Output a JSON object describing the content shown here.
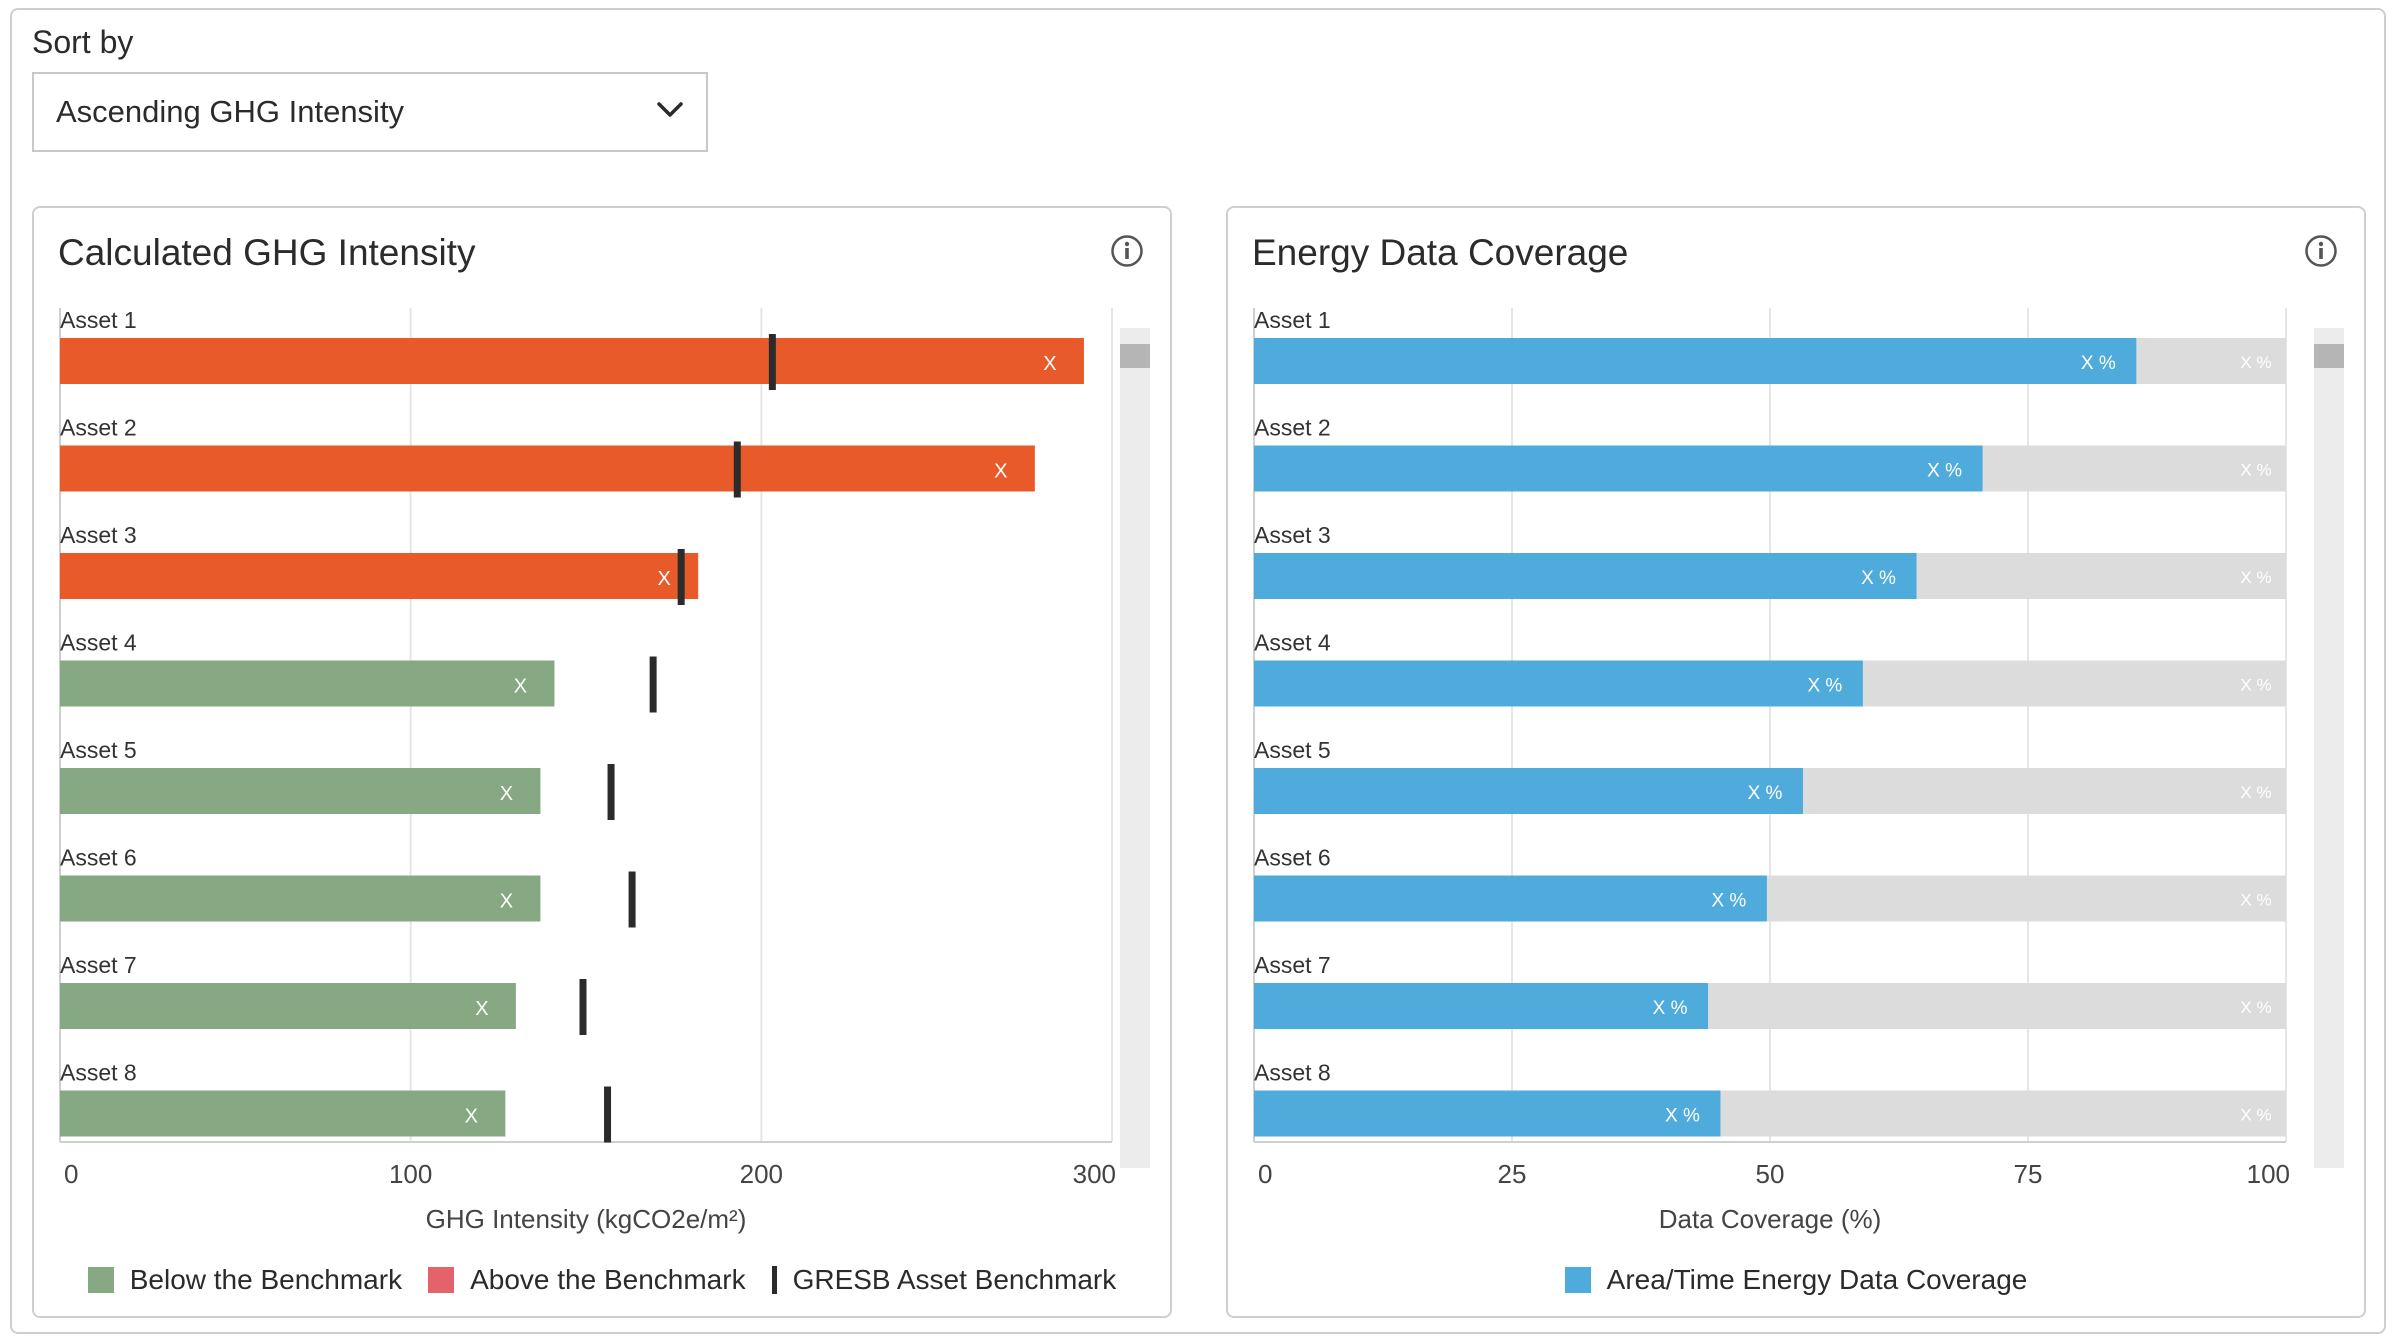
{
  "sort": {
    "label": "Sort by",
    "selected": "Ascending GHG Intensity"
  },
  "colors": {
    "above": "#e85a2a",
    "below": "#86a883",
    "benchmark": "#2b2b2b",
    "coverage": "#4fabdc",
    "coverage_rest": "#dcdcdc",
    "grid": "#e6e6e6"
  },
  "left_panel": {
    "title": "Calculated GHG Intensity",
    "legend": {
      "below": "Below the Benchmark",
      "above": "Above the Benchmark",
      "benchmark": "GRESB Asset Benchmark"
    },
    "legend_above_color": "#e4636b"
  },
  "right_panel": {
    "title": "Energy Data Coverage",
    "legend": {
      "coverage": "Area/Time Energy Data Coverage"
    }
  },
  "chart_data": [
    {
      "type": "bar",
      "orientation": "horizontal",
      "title": "Calculated GHG Intensity",
      "xlabel": "GHG Intensity (kgCO2e/m²)",
      "xlim": [
        0,
        300
      ],
      "xticks": [
        "0",
        "100",
        "200",
        "300"
      ],
      "xtick_values": [
        0,
        100,
        200,
        300
      ],
      "categories": [
        "Asset 1",
        "Asset 2",
        "Asset 3",
        "Asset 4",
        "Asset 5",
        "Asset 6",
        "Asset 7",
        "Asset 8"
      ],
      "values": [
        292,
        278,
        182,
        141,
        137,
        137,
        130,
        127
      ],
      "status": [
        "above",
        "above",
        "above",
        "below",
        "below",
        "below",
        "below",
        "below"
      ],
      "benchmark": [
        203,
        193,
        177,
        169,
        157,
        163,
        149,
        156
      ],
      "data_labels": [
        "X",
        "X",
        "X",
        "X",
        "X",
        "X",
        "X",
        "X"
      ],
      "grid": true,
      "legend": [
        "Below the Benchmark",
        "Above the Benchmark",
        "GRESB Asset Benchmark"
      ],
      "legend_position": "bottom"
    },
    {
      "type": "bar",
      "orientation": "horizontal",
      "stacked": true,
      "title": "Energy Data Coverage",
      "xlabel": "Data Coverage (%)",
      "xlim": [
        0,
        100
      ],
      "xticks": [
        "0",
        "25",
        "50",
        "75",
        "100"
      ],
      "xtick_values": [
        0,
        25,
        50,
        75,
        100
      ],
      "categories": [
        "Asset 1",
        "Asset 2",
        "Asset 3",
        "Asset 4",
        "Asset 5",
        "Asset 6",
        "Asset 7",
        "Asset 8"
      ],
      "series": [
        {
          "name": "Area/Time Energy Data Coverage",
          "values": [
            85.5,
            70.6,
            64.2,
            59.0,
            53.2,
            49.7,
            44.0,
            45.2
          ]
        }
      ],
      "data_labels": [
        "X %",
        "X %",
        "X %",
        "X %",
        "X %",
        "X %",
        "X %",
        "X %"
      ],
      "rest_labels": [
        "X %",
        "X %",
        "X %",
        "X %",
        "X %",
        "X %",
        "X %",
        "X %"
      ],
      "grid": true,
      "legend": [
        "Area/Time Energy Data Coverage"
      ],
      "legend_position": "bottom"
    }
  ]
}
